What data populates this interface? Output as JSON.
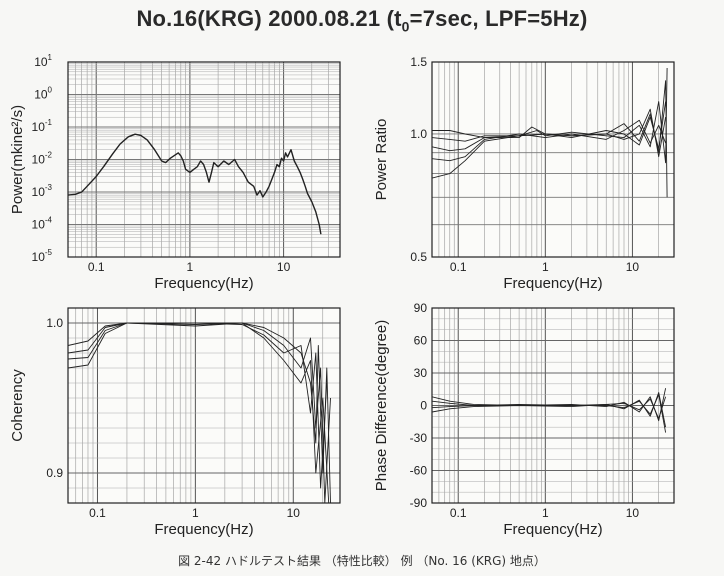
{
  "figure": {
    "title_text": "No.16(KRG) 2000.08.21 (t",
    "title_subscript": "0",
    "title_suffix": "=7sec, LPF=5Hz)",
    "caption": "図 2-42   ハドルテスト結果 （特性比較） 例 （No. 16 (KRG) 地点）"
  },
  "chart_data": [
    {
      "id": "power",
      "type": "line",
      "xlabel": "Frequency(Hz)",
      "ylabel": "Power(mkine²/s)",
      "xscale": "log",
      "yscale": "log",
      "xlim": [
        0.05,
        40
      ],
      "ylim": [
        1e-05,
        10
      ],
      "x_ticks": [
        {
          "v": 0.1,
          "label": "0.1"
        },
        {
          "v": 1,
          "label": "1"
        },
        {
          "v": 10,
          "label": "10"
        }
      ],
      "y_ticks": [
        {
          "v": 1e-05,
          "b": "10",
          "e": "-5"
        },
        {
          "v": 0.0001,
          "b": "10",
          "e": "-4"
        },
        {
          "v": 0.001,
          "b": "10",
          "e": "-3"
        },
        {
          "v": 0.01,
          "b": "10",
          "e": "-2"
        },
        {
          "v": 0.1,
          "b": "10",
          "e": "-1"
        },
        {
          "v": 1,
          "b": "10",
          "e": "0"
        },
        {
          "v": 10,
          "b": "10",
          "e": "1"
        }
      ],
      "grid": true,
      "series": [
        {
          "points": [
            [
              0.05,
              0.0008
            ],
            [
              0.06,
              0.00085
            ],
            [
              0.07,
              0.001
            ],
            [
              0.08,
              0.0015
            ],
            [
              0.1,
              0.003
            ],
            [
              0.12,
              0.006
            ],
            [
              0.15,
              0.015
            ],
            [
              0.18,
              0.03
            ],
            [
              0.22,
              0.05
            ],
            [
              0.26,
              0.06
            ],
            [
              0.3,
              0.055
            ],
            [
              0.35,
              0.04
            ],
            [
              0.42,
              0.02
            ],
            [
              0.5,
              0.009
            ],
            [
              0.55,
              0.008
            ],
            [
              0.62,
              0.011
            ],
            [
              0.7,
              0.014
            ],
            [
              0.75,
              0.016
            ],
            [
              0.8,
              0.013
            ],
            [
              0.85,
              0.009
            ],
            [
              0.9,
              0.005
            ],
            [
              1.0,
              0.004
            ],
            [
              1.1,
              0.005
            ],
            [
              1.2,
              0.006
            ],
            [
              1.3,
              0.009
            ],
            [
              1.4,
              0.007
            ],
            [
              1.5,
              0.004
            ],
            [
              1.6,
              0.002
            ],
            [
              1.7,
              0.004
            ],
            [
              1.8,
              0.008
            ],
            [
              2.0,
              0.006
            ],
            [
              2.3,
              0.009
            ],
            [
              2.6,
              0.007
            ],
            [
              3.0,
              0.01
            ],
            [
              3.3,
              0.006
            ],
            [
              3.7,
              0.004
            ],
            [
              4.2,
              0.002
            ],
            [
              4.8,
              0.0015
            ],
            [
              5.2,
              0.0008
            ],
            [
              5.6,
              0.0011
            ],
            [
              6.0,
              0.0007
            ],
            [
              6.5,
              0.001
            ],
            [
              7.0,
              0.0015
            ],
            [
              7.5,
              0.0025
            ],
            [
              8.0,
              0.004
            ],
            [
              8.5,
              0.007
            ],
            [
              9.0,
              0.006
            ],
            [
              9.5,
              0.011
            ],
            [
              10,
              0.009
            ],
            [
              10.5,
              0.016
            ],
            [
              11,
              0.012
            ],
            [
              12,
              0.02
            ],
            [
              13,
              0.009
            ],
            [
              14,
              0.006
            ],
            [
              15,
              0.004
            ],
            [
              16,
              0.0025
            ],
            [
              17,
              0.0015
            ],
            [
              18,
              0.0009
            ],
            [
              20,
              0.0005
            ],
            [
              22,
              0.00025
            ],
            [
              24,
              0.0001
            ],
            [
              25,
              5e-05
            ]
          ]
        }
      ]
    },
    {
      "id": "ratio",
      "type": "line",
      "xlabel": "Frequency(Hz)",
      "ylabel": "Power Ratio",
      "xscale": "log",
      "yscale": "log",
      "xlim": [
        0.05,
        30
      ],
      "ylim": [
        0.5,
        1.5
      ],
      "x_ticks": [
        {
          "v": 0.1,
          "label": "0.1"
        },
        {
          "v": 1,
          "label": "1"
        },
        {
          "v": 10,
          "label": "10"
        }
      ],
      "y_ticks": [
        {
          "v": 0.5,
          "label": "0.5"
        },
        {
          "v": 1.0,
          "label": "1.0"
        },
        {
          "v": 1.5,
          "label": "1.5"
        }
      ],
      "grid": true,
      "series": [
        {
          "points": [
            [
              0.05,
              1.02
            ],
            [
              0.08,
              1.02
            ],
            [
              0.12,
              1.0
            ],
            [
              0.2,
              0.98
            ],
            [
              0.5,
              0.98
            ],
            [
              0.7,
              1.04
            ],
            [
              1,
              1.0
            ],
            [
              2,
              0.99
            ],
            [
              5,
              1.0
            ],
            [
              8,
              1.06
            ],
            [
              12,
              0.96
            ],
            [
              16,
              1.12
            ],
            [
              20,
              0.9
            ],
            [
              24,
              1.35
            ],
            [
              25,
              0.7
            ]
          ]
        },
        {
          "points": [
            [
              0.05,
              0.98
            ],
            [
              0.08,
              0.97
            ],
            [
              0.12,
              0.96
            ],
            [
              0.2,
              0.99
            ],
            [
              0.5,
              0.99
            ],
            [
              0.8,
              1.02
            ],
            [
              1,
              0.99
            ],
            [
              2,
              1.01
            ],
            [
              5,
              0.99
            ],
            [
              8,
              0.98
            ],
            [
              12,
              1.05
            ],
            [
              16,
              0.93
            ],
            [
              20,
              1.2
            ],
            [
              24,
              0.85
            ],
            [
              25,
              1.45
            ]
          ]
        },
        {
          "points": [
            [
              0.05,
              0.93
            ],
            [
              0.08,
              0.91
            ],
            [
              0.12,
              0.92
            ],
            [
              0.2,
              0.98
            ],
            [
              0.5,
              0.99
            ],
            [
              1,
              1.0
            ],
            [
              2,
              0.98
            ],
            [
              5,
              1.02
            ],
            [
              8,
              1.0
            ],
            [
              12,
              0.94
            ],
            [
              16,
              1.1
            ],
            [
              20,
              0.92
            ],
            [
              24,
              1.2
            ]
          ]
        },
        {
          "points": [
            [
              0.05,
              0.87
            ],
            [
              0.08,
              0.86
            ],
            [
              0.12,
              0.88
            ],
            [
              0.2,
              0.97
            ],
            [
              0.5,
              1.0
            ],
            [
              1,
              0.98
            ],
            [
              2,
              1.0
            ],
            [
              5,
              0.97
            ],
            [
              8,
              1.02
            ],
            [
              12,
              1.08
            ],
            [
              16,
              0.95
            ],
            [
              20,
              1.05
            ],
            [
              24,
              0.95
            ]
          ]
        },
        {
          "points": [
            [
              0.05,
              0.78
            ],
            [
              0.08,
              0.8
            ],
            [
              0.12,
              0.86
            ],
            [
              0.2,
              0.96
            ],
            [
              0.5,
              0.99
            ],
            [
              1,
              1.0
            ],
            [
              2,
              0.99
            ],
            [
              5,
              1.0
            ],
            [
              8,
              0.97
            ],
            [
              12,
              1.0
            ],
            [
              16,
              1.15
            ],
            [
              20,
              0.88
            ],
            [
              24,
              1.1
            ]
          ]
        }
      ]
    },
    {
      "id": "coherency",
      "type": "line",
      "xlabel": "Frequency(Hz)",
      "ylabel": "Coherency",
      "xscale": "log",
      "yscale": "linear",
      "xlim": [
        0.05,
        30
      ],
      "ylim": [
        0.88,
        1.01
      ],
      "x_ticks": [
        {
          "v": 0.1,
          "label": "0.1"
        },
        {
          "v": 1,
          "label": "1"
        },
        {
          "v": 10,
          "label": "10"
        }
      ],
      "y_ticks": [
        {
          "v": 0.9,
          "label": "0.9"
        },
        {
          "v": 1.0,
          "label": "1.0"
        }
      ],
      "grid": true,
      "series": [
        {
          "points": [
            [
              0.05,
              0.985
            ],
            [
              0.08,
              0.988
            ],
            [
              0.12,
              0.998
            ],
            [
              0.2,
              1.0
            ],
            [
              1,
              1.0
            ],
            [
              3,
              1.0
            ],
            [
              5,
              0.997
            ],
            [
              8,
              0.99
            ],
            [
              12,
              0.98
            ],
            [
              15,
              0.96
            ],
            [
              17,
              0.92
            ],
            [
              18,
              0.985
            ],
            [
              20,
              0.9
            ],
            [
              22,
              0.97
            ],
            [
              24,
              0.88
            ]
          ]
        },
        {
          "points": [
            [
              0.05,
              0.98
            ],
            [
              0.08,
              0.982
            ],
            [
              0.12,
              0.997
            ],
            [
              0.2,
              1.0
            ],
            [
              1,
              0.999
            ],
            [
              3,
              1.0
            ],
            [
              5,
              0.995
            ],
            [
              8,
              0.985
            ],
            [
              12,
              0.97
            ],
            [
              15,
              0.99
            ],
            [
              17,
              0.93
            ],
            [
              19,
              0.97
            ],
            [
              21,
              0.88
            ],
            [
              24,
              0.95
            ]
          ]
        },
        {
          "points": [
            [
              0.05,
              0.976
            ],
            [
              0.08,
              0.977
            ],
            [
              0.12,
              0.995
            ],
            [
              0.2,
              1.0
            ],
            [
              1,
              1.0
            ],
            [
              3,
              0.999
            ],
            [
              5,
              0.992
            ],
            [
              8,
              0.98
            ],
            [
              12,
              0.985
            ],
            [
              15,
              0.94
            ],
            [
              17,
              0.98
            ],
            [
              19,
              0.89
            ],
            [
              22,
              0.96
            ]
          ]
        },
        {
          "points": [
            [
              0.05,
              0.97
            ],
            [
              0.08,
              0.972
            ],
            [
              0.12,
              0.993
            ],
            [
              0.2,
              1.0
            ],
            [
              1,
              0.998
            ],
            [
              3,
              1.0
            ],
            [
              5,
              0.99
            ],
            [
              8,
              0.975
            ],
            [
              12,
              0.96
            ],
            [
              15,
              0.975
            ],
            [
              17,
              0.9
            ],
            [
              20,
              0.95
            ],
            [
              23,
              0.88
            ]
          ]
        }
      ]
    },
    {
      "id": "phase",
      "type": "line",
      "xlabel": "Frequency(Hz)",
      "ylabel": "Phase Difference(degree)",
      "xscale": "log",
      "yscale": "linear",
      "xlim": [
        0.05,
        30
      ],
      "ylim": [
        -90,
        90
      ],
      "x_ticks": [
        {
          "v": 0.1,
          "label": "0.1"
        },
        {
          "v": 1,
          "label": "1"
        },
        {
          "v": 10,
          "label": "10"
        }
      ],
      "y_ticks": [
        {
          "v": -90,
          "label": "-90"
        },
        {
          "v": -60,
          "label": "-60"
        },
        {
          "v": -30,
          "label": "-30"
        },
        {
          "v": 0,
          "label": "0"
        },
        {
          "v": 30,
          "label": "30"
        },
        {
          "v": 60,
          "label": "60"
        },
        {
          "v": 90,
          "label": "90"
        }
      ],
      "grid": true,
      "series": [
        {
          "points": [
            [
              0.05,
              8
            ],
            [
              0.08,
              4
            ],
            [
              0.15,
              1
            ],
            [
              0.5,
              0
            ],
            [
              2,
              0
            ],
            [
              5,
              1
            ],
            [
              8,
              -3
            ],
            [
              12,
              5
            ],
            [
              16,
              -10
            ],
            [
              20,
              12
            ],
            [
              24,
              -20
            ]
          ]
        },
        {
          "points": [
            [
              0.05,
              4
            ],
            [
              0.08,
              2
            ],
            [
              0.15,
              0
            ],
            [
              0.5,
              0
            ],
            [
              2,
              1
            ],
            [
              5,
              -1
            ],
            [
              8,
              3
            ],
            [
              12,
              -6
            ],
            [
              16,
              8
            ],
            [
              20,
              -14
            ],
            [
              24,
              16
            ]
          ]
        },
        {
          "points": [
            [
              0.05,
              -2
            ],
            [
              0.08,
              -1
            ],
            [
              0.15,
              0
            ],
            [
              0.5,
              1
            ],
            [
              2,
              0
            ],
            [
              5,
              0
            ],
            [
              8,
              -2
            ],
            [
              12,
              4
            ],
            [
              16,
              -8
            ],
            [
              20,
              10
            ],
            [
              24,
              -25
            ]
          ]
        },
        {
          "points": [
            [
              0.05,
              -6
            ],
            [
              0.08,
              -3
            ],
            [
              0.15,
              -1
            ],
            [
              0.5,
              0
            ],
            [
              2,
              -1
            ],
            [
              5,
              1
            ],
            [
              8,
              2
            ],
            [
              12,
              -4
            ],
            [
              16,
              6
            ],
            [
              20,
              -12
            ],
            [
              24,
              8
            ]
          ]
        }
      ]
    }
  ]
}
